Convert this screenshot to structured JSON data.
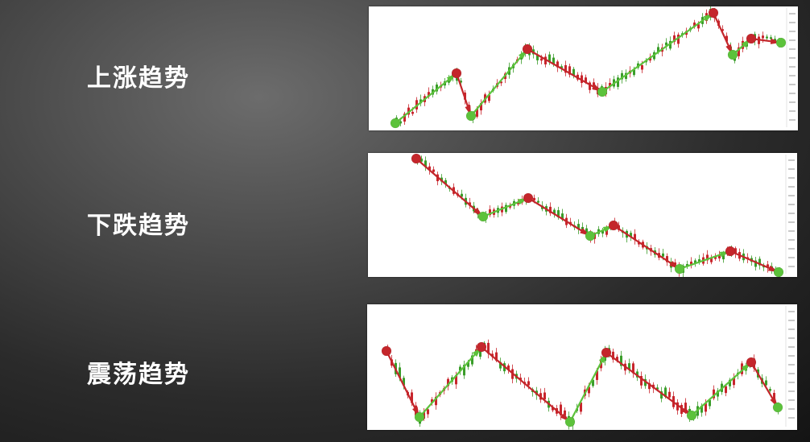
{
  "labels": {
    "uptrend": "上涨趋势",
    "downtrend": "下跌趋势",
    "sideways": "震荡趋势"
  },
  "colors": {
    "up": "#5cc23b",
    "down": "#c4262b",
    "bull_candle": "#3a9d2a",
    "bear_candle": "#c8252c"
  }
}
